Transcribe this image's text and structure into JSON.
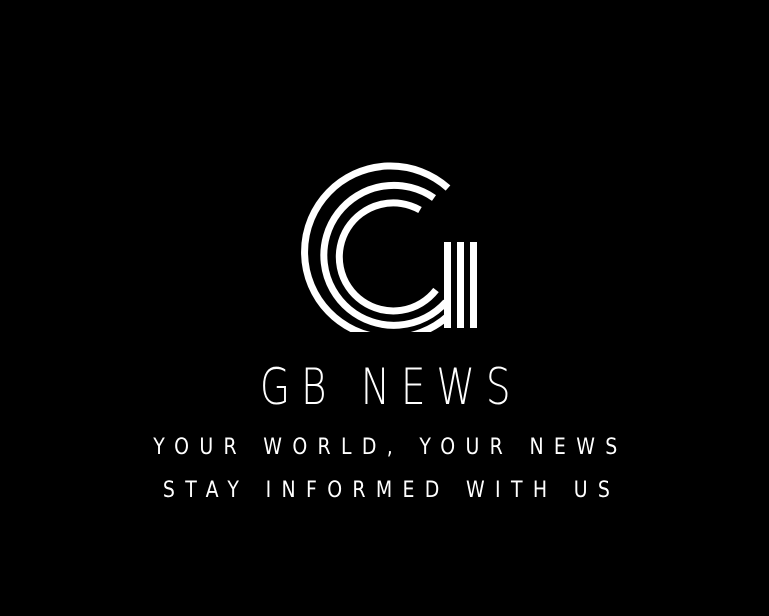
{
  "brand": {
    "logo_icon": "gb-monogram-icon",
    "name": "GB NEWS",
    "tagline_primary": "YOUR WORLD, YOUR NEWS",
    "tagline_secondary": "STAY INFORMED WITH US"
  },
  "colors": {
    "background": "#000000",
    "foreground": "#ffffff"
  }
}
